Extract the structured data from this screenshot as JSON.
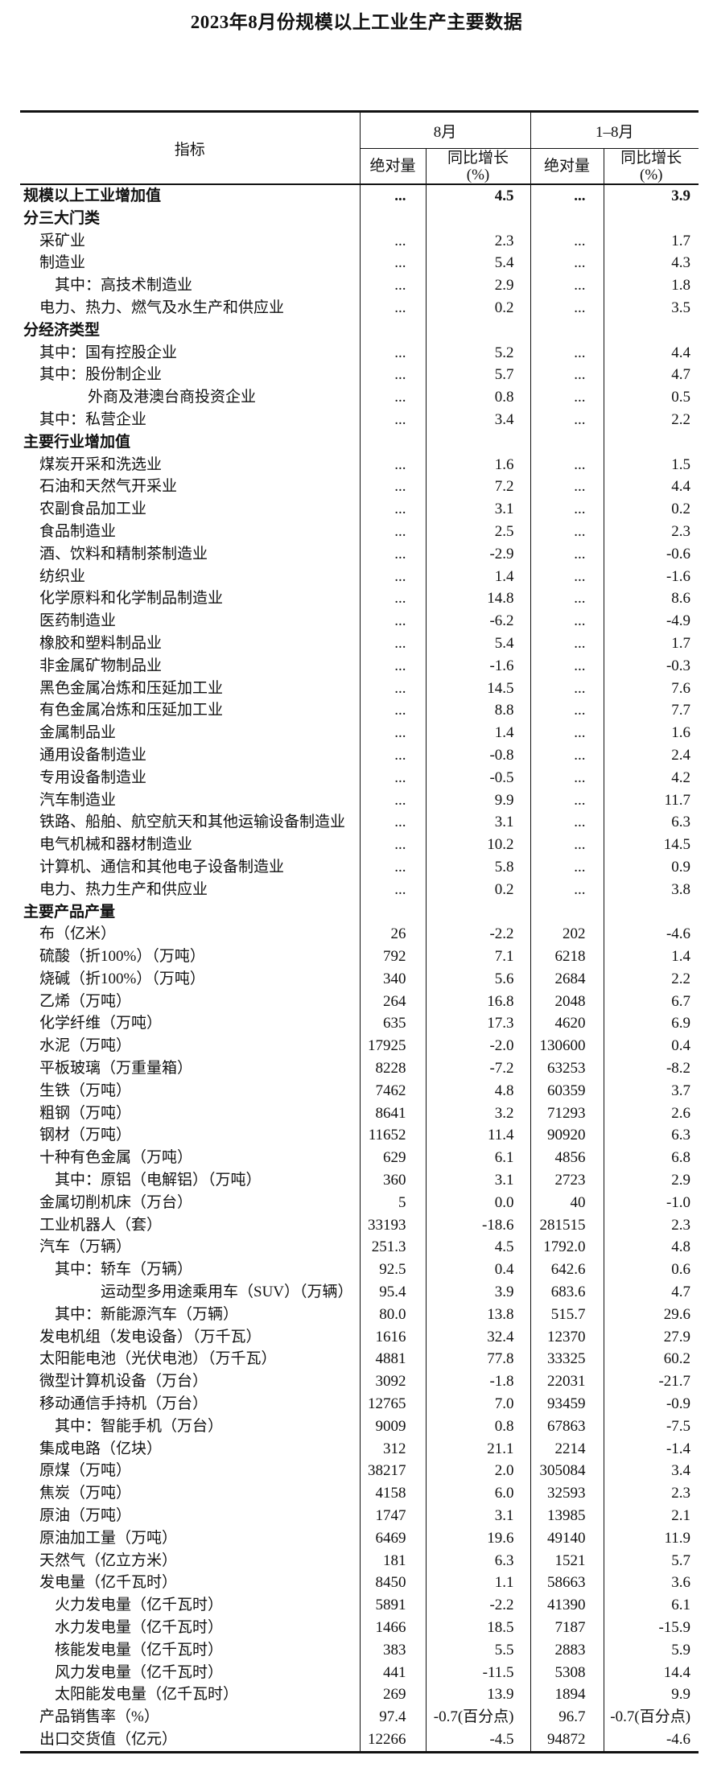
{
  "title": "2023年8月份规模以上工业生产主要数据",
  "table": {
    "header": {
      "indicator": "指标",
      "aug_group": "8月",
      "cum_group": "1–8月",
      "abs_label": "绝对量",
      "yoy_label_line1": "同比增长",
      "yoy_label_line2": "(%)"
    },
    "rows": [
      {
        "label": "规模以上工业增加值",
        "indent": 0,
        "bold": true,
        "v": [
          "...",
          "4.5",
          "...",
          "3.9"
        ]
      },
      {
        "label": "分三大门类",
        "indent": 0,
        "bold": true,
        "v": [
          "",
          "",
          "",
          ""
        ]
      },
      {
        "label": "采矿业",
        "indent": 1,
        "bold": false,
        "v": [
          "...",
          "2.3",
          "...",
          "1.7"
        ]
      },
      {
        "label": "制造业",
        "indent": 1,
        "bold": false,
        "v": [
          "...",
          "5.4",
          "...",
          "4.3"
        ]
      },
      {
        "label": "其中：高技术制造业",
        "indent": 2,
        "bold": false,
        "v": [
          "...",
          "2.9",
          "...",
          "1.8"
        ]
      },
      {
        "label": "电力、热力、燃气及水生产和供应业",
        "indent": 1,
        "bold": false,
        "v": [
          "...",
          "0.2",
          "...",
          "3.5"
        ]
      },
      {
        "label": "分经济类型",
        "indent": 0,
        "bold": true,
        "v": [
          "",
          "",
          "",
          ""
        ]
      },
      {
        "label": "其中：国有控股企业",
        "indent": 1,
        "bold": false,
        "v": [
          "...",
          "5.2",
          "...",
          "4.4"
        ]
      },
      {
        "label": "其中：股份制企业",
        "indent": 1,
        "bold": false,
        "v": [
          "...",
          "5.7",
          "...",
          "4.7"
        ]
      },
      {
        "label": "外商及港澳台商投资企业",
        "indent": 3,
        "bold": false,
        "v": [
          "...",
          "0.8",
          "...",
          "0.5"
        ]
      },
      {
        "label": "其中：私营企业",
        "indent": 1,
        "bold": false,
        "v": [
          "...",
          "3.4",
          "...",
          "2.2"
        ]
      },
      {
        "label": "主要行业增加值",
        "indent": 0,
        "bold": true,
        "v": [
          "",
          "",
          "",
          ""
        ]
      },
      {
        "label": "煤炭开采和洗选业",
        "indent": 1,
        "bold": false,
        "v": [
          "...",
          "1.6",
          "...",
          "1.5"
        ]
      },
      {
        "label": "石油和天然气开采业",
        "indent": 1,
        "bold": false,
        "v": [
          "...",
          "7.2",
          "...",
          "4.4"
        ]
      },
      {
        "label": "农副食品加工业",
        "indent": 1,
        "bold": false,
        "v": [
          "...",
          "3.1",
          "...",
          "0.2"
        ]
      },
      {
        "label": "食品制造业",
        "indent": 1,
        "bold": false,
        "v": [
          "...",
          "2.5",
          "...",
          "2.3"
        ]
      },
      {
        "label": "酒、饮料和精制茶制造业",
        "indent": 1,
        "bold": false,
        "v": [
          "...",
          "-2.9",
          "...",
          "-0.6"
        ]
      },
      {
        "label": "纺织业",
        "indent": 1,
        "bold": false,
        "v": [
          "...",
          "1.4",
          "...",
          "-1.6"
        ]
      },
      {
        "label": "化学原料和化学制品制造业",
        "indent": 1,
        "bold": false,
        "v": [
          "...",
          "14.8",
          "...",
          "8.6"
        ]
      },
      {
        "label": "医药制造业",
        "indent": 1,
        "bold": false,
        "v": [
          "...",
          "-6.2",
          "...",
          "-4.9"
        ]
      },
      {
        "label": "橡胶和塑料制品业",
        "indent": 1,
        "bold": false,
        "v": [
          "...",
          "5.4",
          "...",
          "1.7"
        ]
      },
      {
        "label": "非金属矿物制品业",
        "indent": 1,
        "bold": false,
        "v": [
          "...",
          "-1.6",
          "...",
          "-0.3"
        ]
      },
      {
        "label": "黑色金属冶炼和压延加工业",
        "indent": 1,
        "bold": false,
        "v": [
          "...",
          "14.5",
          "...",
          "7.6"
        ]
      },
      {
        "label": "有色金属冶炼和压延加工业",
        "indent": 1,
        "bold": false,
        "v": [
          "...",
          "8.8",
          "...",
          "7.7"
        ]
      },
      {
        "label": "金属制品业",
        "indent": 1,
        "bold": false,
        "v": [
          "...",
          "1.4",
          "...",
          "1.6"
        ]
      },
      {
        "label": "通用设备制造业",
        "indent": 1,
        "bold": false,
        "v": [
          "...",
          "-0.8",
          "...",
          "2.4"
        ]
      },
      {
        "label": "专用设备制造业",
        "indent": 1,
        "bold": false,
        "v": [
          "...",
          "-0.5",
          "...",
          "4.2"
        ]
      },
      {
        "label": "汽车制造业",
        "indent": 1,
        "bold": false,
        "v": [
          "...",
          "9.9",
          "...",
          "11.7"
        ]
      },
      {
        "label": "铁路、船舶、航空航天和其他运输设备制造业",
        "indent": 1,
        "bold": false,
        "v": [
          "...",
          "3.1",
          "...",
          "6.3"
        ]
      },
      {
        "label": "电气机械和器材制造业",
        "indent": 1,
        "bold": false,
        "v": [
          "...",
          "10.2",
          "...",
          "14.5"
        ]
      },
      {
        "label": "计算机、通信和其他电子设备制造业",
        "indent": 1,
        "bold": false,
        "v": [
          "...",
          "5.8",
          "...",
          "0.9"
        ]
      },
      {
        "label": "电力、热力生产和供应业",
        "indent": 1,
        "bold": false,
        "v": [
          "...",
          "0.2",
          "...",
          "3.8"
        ]
      },
      {
        "label": "主要产品产量",
        "indent": 0,
        "bold": true,
        "v": [
          "",
          "",
          "",
          ""
        ]
      },
      {
        "label": "布（亿米）",
        "indent": 1,
        "bold": false,
        "v": [
          "26",
          "-2.2",
          "202",
          "-4.6"
        ]
      },
      {
        "label": "硫酸（折100%）（万吨）",
        "indent": 1,
        "bold": false,
        "v": [
          "792",
          "7.1",
          "6218",
          "1.4"
        ]
      },
      {
        "label": "烧碱（折100%）（万吨）",
        "indent": 1,
        "bold": false,
        "v": [
          "340",
          "5.6",
          "2684",
          "2.2"
        ]
      },
      {
        "label": "乙烯（万吨）",
        "indent": 1,
        "bold": false,
        "v": [
          "264",
          "16.8",
          "2048",
          "6.7"
        ]
      },
      {
        "label": "化学纤维（万吨）",
        "indent": 1,
        "bold": false,
        "v": [
          "635",
          "17.3",
          "4620",
          "6.9"
        ]
      },
      {
        "label": "水泥（万吨）",
        "indent": 1,
        "bold": false,
        "v": [
          "17925",
          "-2.0",
          "130600",
          "0.4"
        ]
      },
      {
        "label": "平板玻璃（万重量箱）",
        "indent": 1,
        "bold": false,
        "v": [
          "8228",
          "-7.2",
          "63253",
          "-8.2"
        ]
      },
      {
        "label": "生铁（万吨）",
        "indent": 1,
        "bold": false,
        "v": [
          "7462",
          "4.8",
          "60359",
          "3.7"
        ]
      },
      {
        "label": "粗钢（万吨）",
        "indent": 1,
        "bold": false,
        "v": [
          "8641",
          "3.2",
          "71293",
          "2.6"
        ]
      },
      {
        "label": "钢材（万吨）",
        "indent": 1,
        "bold": false,
        "v": [
          "11652",
          "11.4",
          "90920",
          "6.3"
        ]
      },
      {
        "label": "十种有色金属（万吨）",
        "indent": 1,
        "bold": false,
        "v": [
          "629",
          "6.1",
          "4856",
          "6.8"
        ]
      },
      {
        "label": "其中：原铝（电解铝）（万吨）",
        "indent": 2,
        "bold": false,
        "v": [
          "360",
          "3.1",
          "2723",
          "2.9"
        ]
      },
      {
        "label": "金属切削机床（万台）",
        "indent": 1,
        "bold": false,
        "v": [
          "5",
          "0.0",
          "40",
          "-1.0"
        ]
      },
      {
        "label": "工业机器人（套）",
        "indent": 1,
        "bold": false,
        "v": [
          "33193",
          "-18.6",
          "281515",
          "2.3"
        ]
      },
      {
        "label": "汽车（万辆）",
        "indent": 1,
        "bold": false,
        "v": [
          "251.3",
          "4.5",
          "1792.0",
          "4.8"
        ]
      },
      {
        "label": "其中：轿车（万辆）",
        "indent": 2,
        "bold": false,
        "v": [
          "92.5",
          "0.4",
          "642.6",
          "0.6"
        ]
      },
      {
        "label": "运动型多用途乘用车（SUV）（万辆）",
        "indent": 4,
        "bold": false,
        "v": [
          "95.4",
          "3.9",
          "683.6",
          "4.7"
        ]
      },
      {
        "label": "其中：新能源汽车（万辆）",
        "indent": 2,
        "bold": false,
        "v": [
          "80.0",
          "13.8",
          "515.7",
          "29.6"
        ]
      },
      {
        "label": "发电机组（发电设备）（万千瓦）",
        "indent": 1,
        "bold": false,
        "v": [
          "1616",
          "32.4",
          "12370",
          "27.9"
        ]
      },
      {
        "label": "太阳能电池（光伏电池）（万千瓦）",
        "indent": 1,
        "bold": false,
        "v": [
          "4881",
          "77.8",
          "33325",
          "60.2"
        ]
      },
      {
        "label": "微型计算机设备（万台）",
        "indent": 1,
        "bold": false,
        "v": [
          "3092",
          "-1.8",
          "22031",
          "-21.7"
        ]
      },
      {
        "label": "移动通信手持机（万台）",
        "indent": 1,
        "bold": false,
        "v": [
          "12765",
          "7.0",
          "93459",
          "-0.9"
        ]
      },
      {
        "label": "其中：智能手机（万台）",
        "indent": 2,
        "bold": false,
        "v": [
          "9009",
          "0.8",
          "67863",
          "-7.5"
        ]
      },
      {
        "label": "集成电路（亿块）",
        "indent": 1,
        "bold": false,
        "v": [
          "312",
          "21.1",
          "2214",
          "-1.4"
        ]
      },
      {
        "label": "原煤（万吨）",
        "indent": 1,
        "bold": false,
        "v": [
          "38217",
          "2.0",
          "305084",
          "3.4"
        ]
      },
      {
        "label": "焦炭（万吨）",
        "indent": 1,
        "bold": false,
        "v": [
          "4158",
          "6.0",
          "32593",
          "2.3"
        ]
      },
      {
        "label": "原油（万吨）",
        "indent": 1,
        "bold": false,
        "v": [
          "1747",
          "3.1",
          "13985",
          "2.1"
        ]
      },
      {
        "label": "原油加工量（万吨）",
        "indent": 1,
        "bold": false,
        "v": [
          "6469",
          "19.6",
          "49140",
          "11.9"
        ]
      },
      {
        "label": "天然气（亿立方米）",
        "indent": 1,
        "bold": false,
        "v": [
          "181",
          "6.3",
          "1521",
          "5.7"
        ]
      },
      {
        "label": "发电量（亿千瓦时）",
        "indent": 1,
        "bold": false,
        "v": [
          "8450",
          "1.1",
          "58663",
          "3.6"
        ]
      },
      {
        "label": "火力发电量（亿千瓦时）",
        "indent": 2,
        "bold": false,
        "v": [
          "5891",
          "-2.2",
          "41390",
          "6.1"
        ]
      },
      {
        "label": "水力发电量（亿千瓦时）",
        "indent": 2,
        "bold": false,
        "v": [
          "1466",
          "18.5",
          "7187",
          "-15.9"
        ]
      },
      {
        "label": "核能发电量（亿千瓦时）",
        "indent": 2,
        "bold": false,
        "v": [
          "383",
          "5.5",
          "2883",
          "5.9"
        ]
      },
      {
        "label": "风力发电量（亿千瓦时）",
        "indent": 2,
        "bold": false,
        "v": [
          "441",
          "-11.5",
          "5308",
          "14.4"
        ]
      },
      {
        "label": "太阳能发电量（亿千瓦时）",
        "indent": 2,
        "bold": false,
        "v": [
          "269",
          "13.9",
          "1894",
          "9.9"
        ]
      },
      {
        "label": "产品销售率（%）",
        "indent": 1,
        "bold": false,
        "v": [
          "97.4",
          "-0.7(百分点)",
          "96.7",
          "-0.7(百分点)"
        ]
      },
      {
        "label": "出口交货值（亿元）",
        "indent": 1,
        "bold": false,
        "v": [
          "12266",
          "-4.5",
          "94872",
          "-4.6"
        ]
      }
    ]
  }
}
